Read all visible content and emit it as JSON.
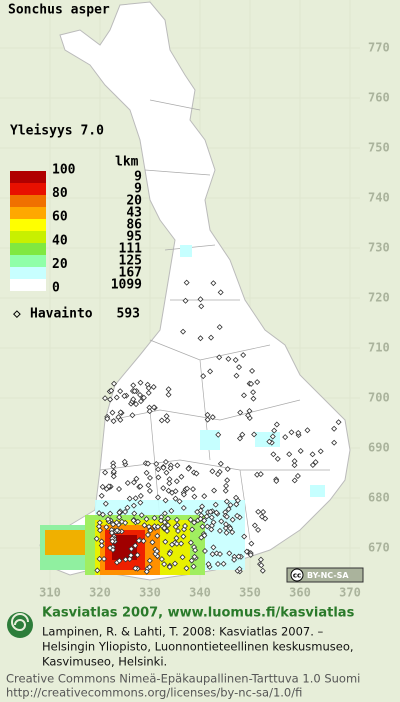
{
  "header": {
    "title": "Sonchus asper"
  },
  "map": {
    "y_labels": [
      770,
      760,
      750,
      740,
      730,
      720,
      710,
      700,
      690,
      680,
      670
    ],
    "x_labels": [
      310,
      320,
      330,
      340,
      350,
      360,
      370
    ],
    "license_badge": {
      "icon": "cc",
      "text": "BY-NC-SA"
    }
  },
  "legend": {
    "title": "Yleisyys 7.0",
    "scale": [
      100,
      80,
      60,
      40,
      20,
      0
    ],
    "count_header": "lkm",
    "counts": [
      9,
      9,
      20,
      43,
      86,
      95,
      111,
      125,
      167,
      1099
    ],
    "observations": {
      "label": "Havainto",
      "count": 593
    }
  },
  "footer": {
    "title": "Kasviatlas 2007, www.luomus.fi/kasviatlas",
    "citation": [
      "Lampinen, R. & Lahti, T. 2008: Kasviatlas 2007. –",
      "Helsingin Yliopisto, Luonnontieteellinen keskusmuseo,",
      "Kasvimuseo, Helsinki."
    ],
    "license": [
      "Creative Commons Nimeä-Epäkaupallinen-Tarttuva 1.0 Suomi",
      "http://creativecommons.org/licenses/by-nc-sa/1.0/fi"
    ]
  }
}
